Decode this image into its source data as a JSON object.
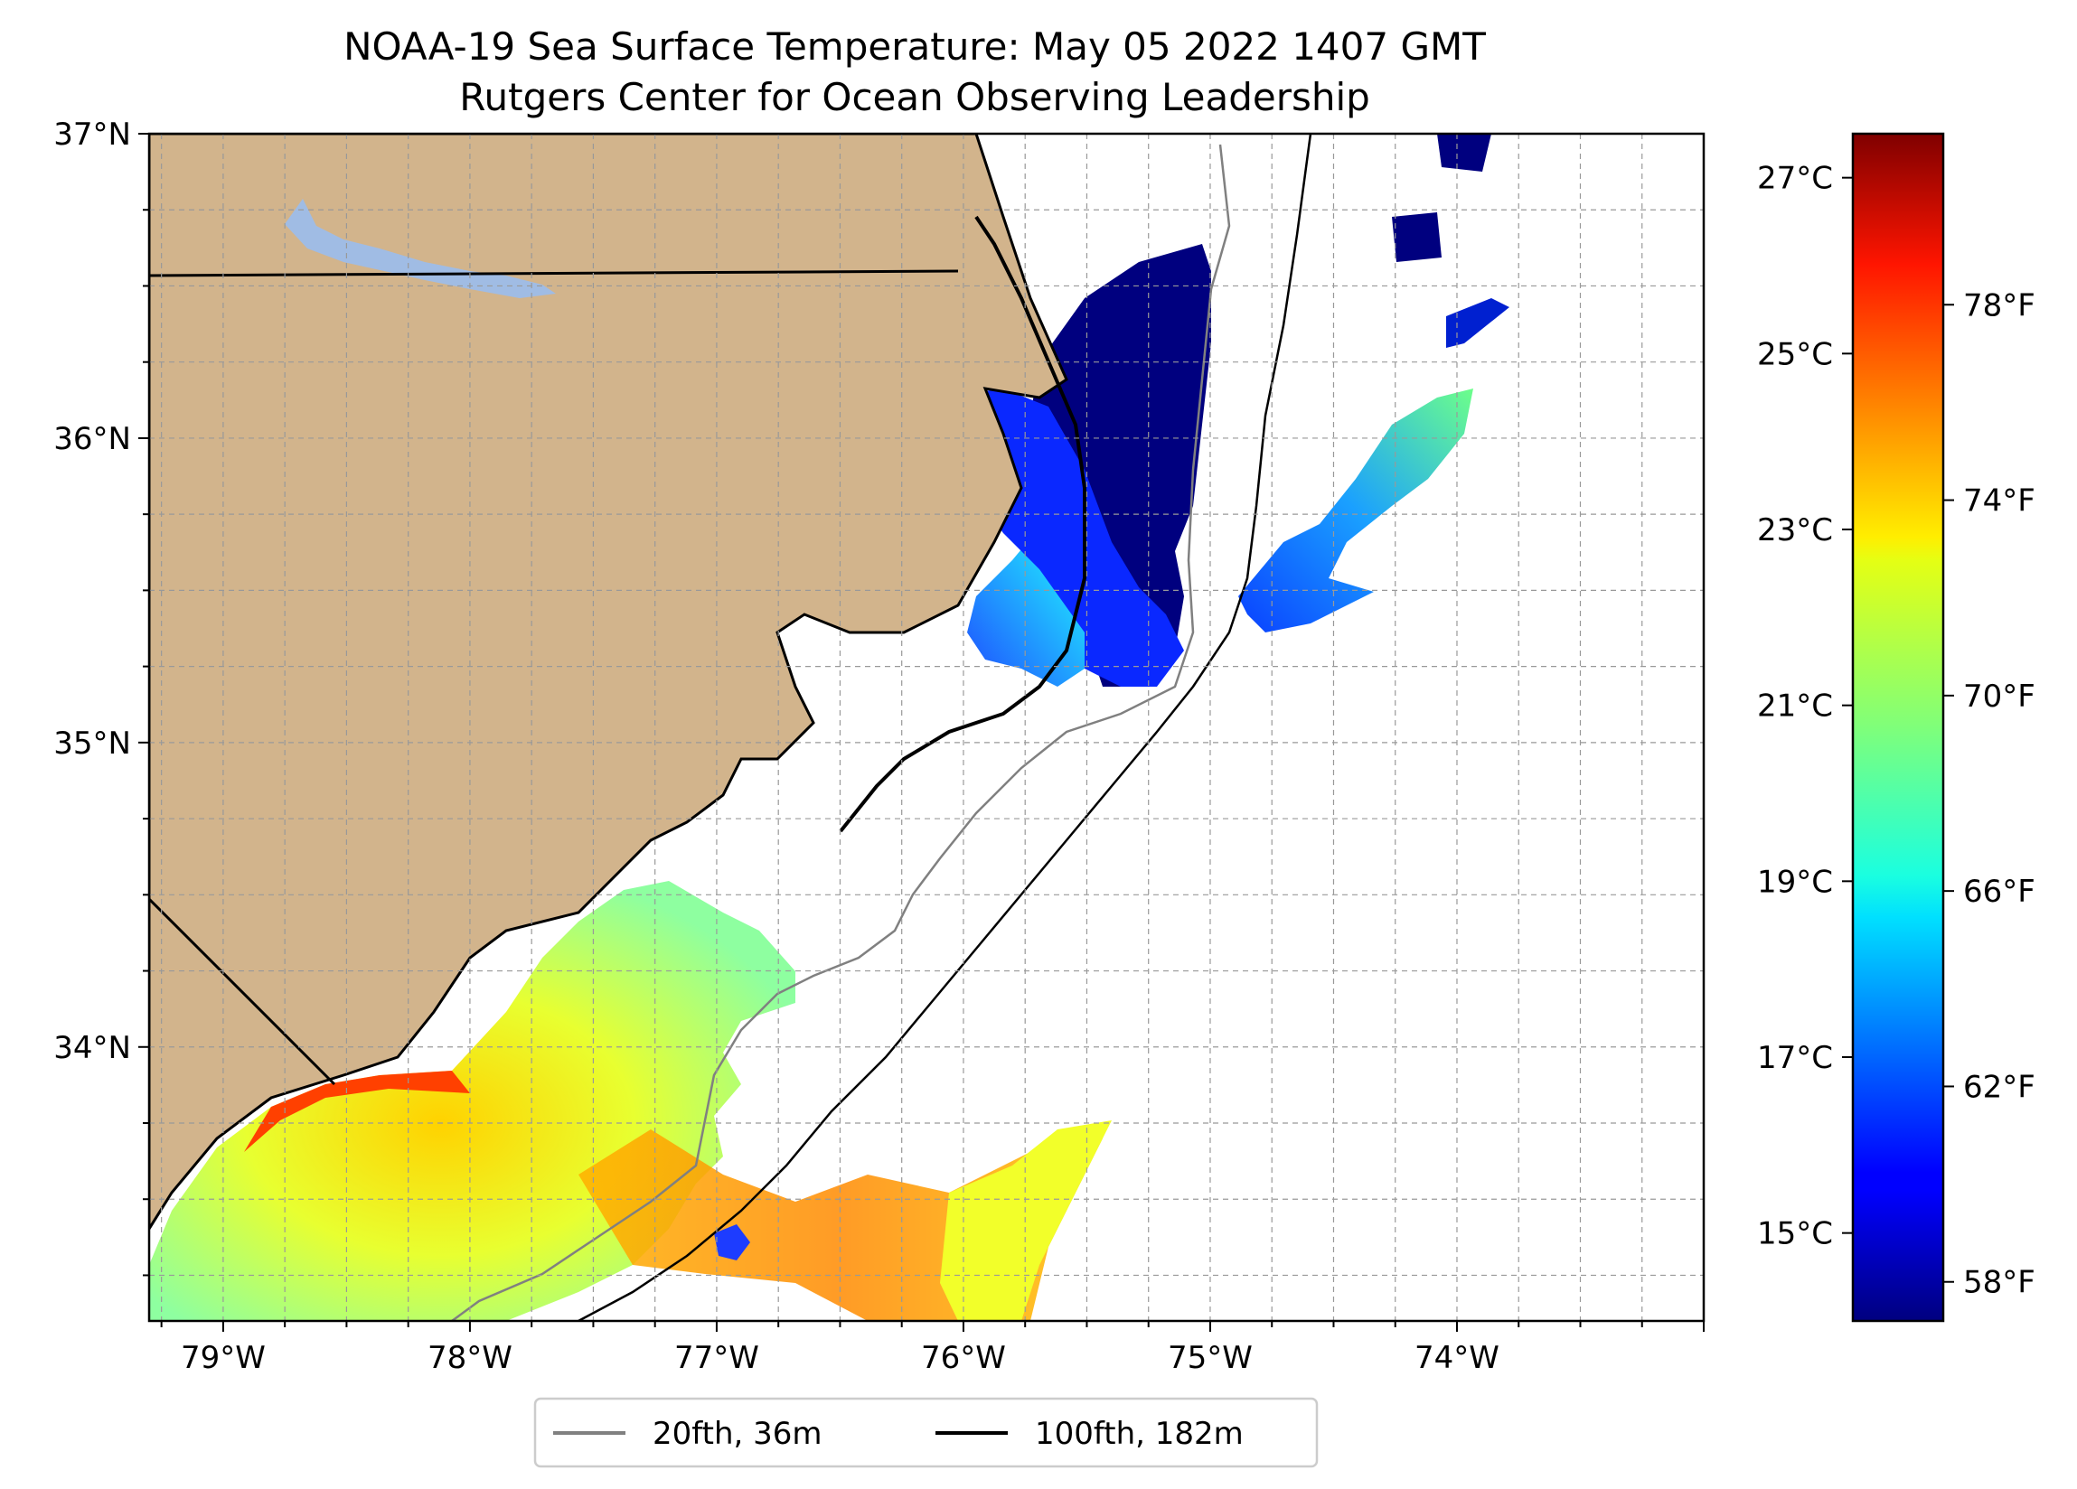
{
  "title_line1": "NOAA-19 Sea Surface Temperature: May 05 2022 1407 GMT",
  "title_line2": "Rutgers Center for Ocean Observing Leadership",
  "map": {
    "lon_range": [
      -79.3,
      -73.0
    ],
    "lat_range": [
      33.1,
      37.0
    ],
    "lon_ticks": [
      {
        "value": -79,
        "label": "79°W"
      },
      {
        "value": -78,
        "label": "78°W"
      },
      {
        "value": -77,
        "label": "77°W"
      },
      {
        "value": -76,
        "label": "76°W"
      },
      {
        "value": -75,
        "label": "75°W"
      },
      {
        "value": -74,
        "label": "74°W"
      }
    ],
    "lat_ticks": [
      {
        "value": 37,
        "label": "37°N"
      },
      {
        "value": 36,
        "label": "36°N"
      },
      {
        "value": 35,
        "label": "35°N"
      },
      {
        "value": 34,
        "label": "34°N"
      }
    ],
    "grid": true,
    "land_color": "#d2b48c",
    "lake_color": "#a0bce4"
  },
  "colorbar": {
    "celsius_ticks": [
      {
        "value": 27,
        "label": "27°C"
      },
      {
        "value": 25,
        "label": "25°C"
      },
      {
        "value": 23,
        "label": "23°C"
      },
      {
        "value": 21,
        "label": "21°C"
      },
      {
        "value": 19,
        "label": "19°C"
      },
      {
        "value": 17,
        "label": "17°C"
      },
      {
        "value": 15,
        "label": "15°C"
      }
    ],
    "fahrenheit_ticks": [
      {
        "value": 78,
        "label": "78°F"
      },
      {
        "value": 74,
        "label": "74°F"
      },
      {
        "value": 70,
        "label": "70°F"
      },
      {
        "value": 66,
        "label": "66°F"
      },
      {
        "value": 62,
        "label": "62°F"
      },
      {
        "value": 58,
        "label": "58°F"
      }
    ],
    "f_range": [
      57.2,
      81.5
    ],
    "colormap": "jet"
  },
  "legend": {
    "items": [
      {
        "label": "20fth, 36m",
        "color": "#808080"
      },
      {
        "label": "100fth, 182m",
        "color": "#000000"
      }
    ],
    "placement": "bottom-center"
  }
}
